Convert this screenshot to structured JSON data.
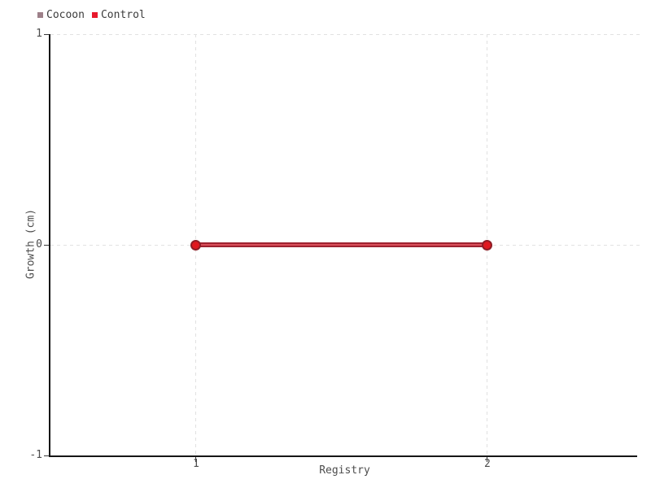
{
  "legend": {
    "items": [
      {
        "label": "Cocoon",
        "color": "#9d8089"
      },
      {
        "label": "Control",
        "color": "#e8192c"
      }
    ]
  },
  "chart_data": {
    "type": "line",
    "title": "",
    "xlabel": "Registry",
    "ylabel": "Growth (cm)",
    "xlim": [
      0.5,
      2.52
    ],
    "ylim": [
      -1,
      1
    ],
    "x_ticks": [
      1,
      2
    ],
    "y_ticks": [
      -1,
      0,
      1
    ],
    "grid": true,
    "legend_position": "top-left",
    "series": [
      {
        "name": "Cocoon",
        "color": "#9d8089",
        "points": []
      },
      {
        "name": "Control",
        "color": "#e8192c",
        "marker_fill": "#e0181f",
        "marker_stroke": "#8e1d26",
        "line_core": "#d94f5a",
        "line_edge": "#9e2230",
        "points": [
          [
            1,
            0
          ],
          [
            2,
            0
          ]
        ]
      }
    ]
  },
  "colors": {
    "axis": "#161616",
    "grid": "#e1e1e1",
    "tick_text": "#4d4d4d"
  }
}
